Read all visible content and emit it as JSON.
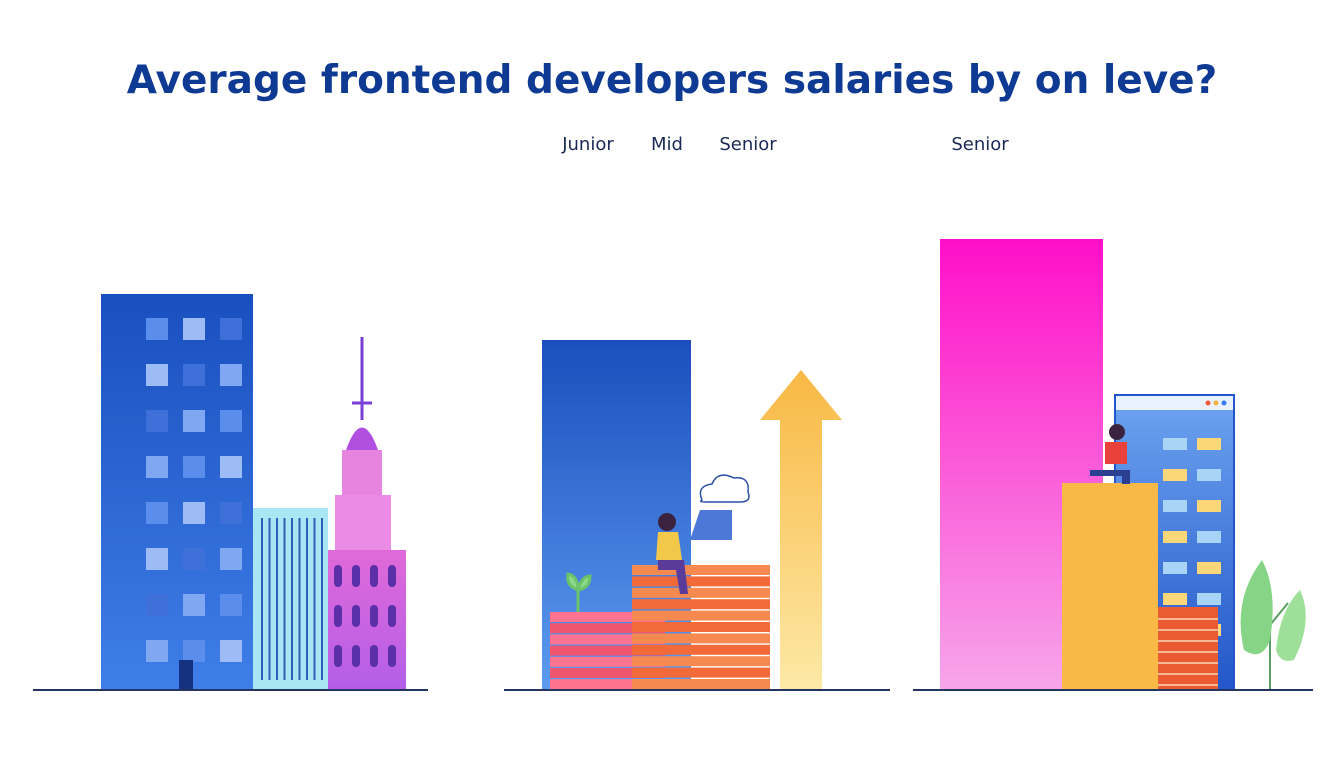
{
  "title": "Average frontend developers salaries by on leve?",
  "labels": [
    "Junior",
    "Mid",
    "Senior",
    "Senior"
  ]
}
